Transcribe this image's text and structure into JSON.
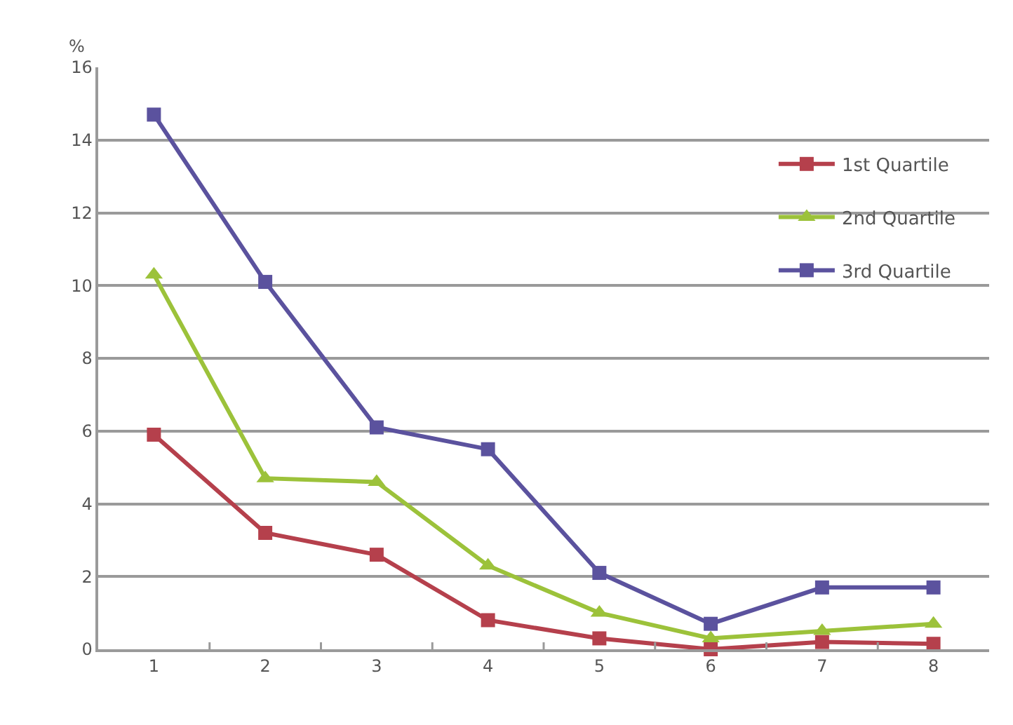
{
  "chart_data": {
    "type": "line",
    "ylabel": "%",
    "categories": [
      "1",
      "2",
      "3",
      "4",
      "5",
      "6",
      "7",
      "8"
    ],
    "series": [
      {
        "name": "1st Quartile",
        "color": "#b5404c",
        "marker": "square",
        "values": [
          5.9,
          3.2,
          2.6,
          0.8,
          0.3,
          0.0,
          0.2,
          0.15
        ]
      },
      {
        "name": "2nd Quartile",
        "color": "#9cc23a",
        "marker": "triangle",
        "values": [
          10.3,
          4.7,
          4.6,
          2.3,
          1.0,
          0.3,
          0.5,
          0.7
        ]
      },
      {
        "name": "3rd Quartile",
        "color": "#5b529e",
        "marker": "square",
        "values": [
          14.7,
          10.1,
          6.1,
          5.5,
          2.1,
          0.7,
          1.7,
          1.7
        ]
      }
    ],
    "ylim": [
      0,
      16
    ],
    "yticks": [
      0,
      2,
      4,
      6,
      8,
      10,
      12,
      14,
      16
    ],
    "grid": "y",
    "legend": "top right",
    "line_style": "solid"
  }
}
